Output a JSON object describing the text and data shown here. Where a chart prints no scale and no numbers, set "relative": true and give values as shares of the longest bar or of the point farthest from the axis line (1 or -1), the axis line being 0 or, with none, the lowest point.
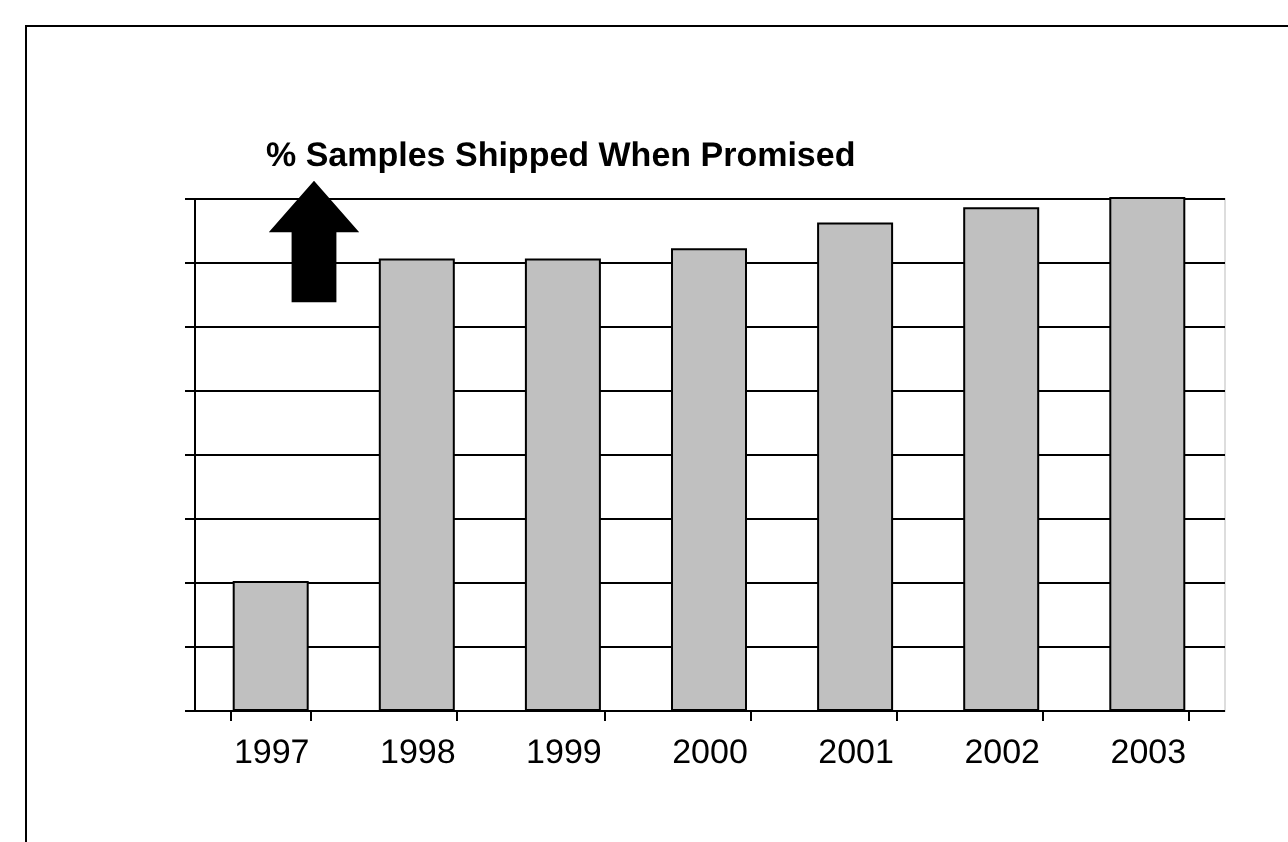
{
  "chart_data": {
    "type": "bar",
    "title": "% Samples Shipped When Promised",
    "categories": [
      "1997",
      "1998",
      "1999",
      "2000",
      "2001",
      "2002",
      "2003"
    ],
    "values": [
      0.25,
      0.88,
      0.88,
      0.9,
      0.95,
      0.98,
      1.0
    ],
    "color": "#c0c0c0",
    "relative": true,
    "grid": "y"
  }
}
